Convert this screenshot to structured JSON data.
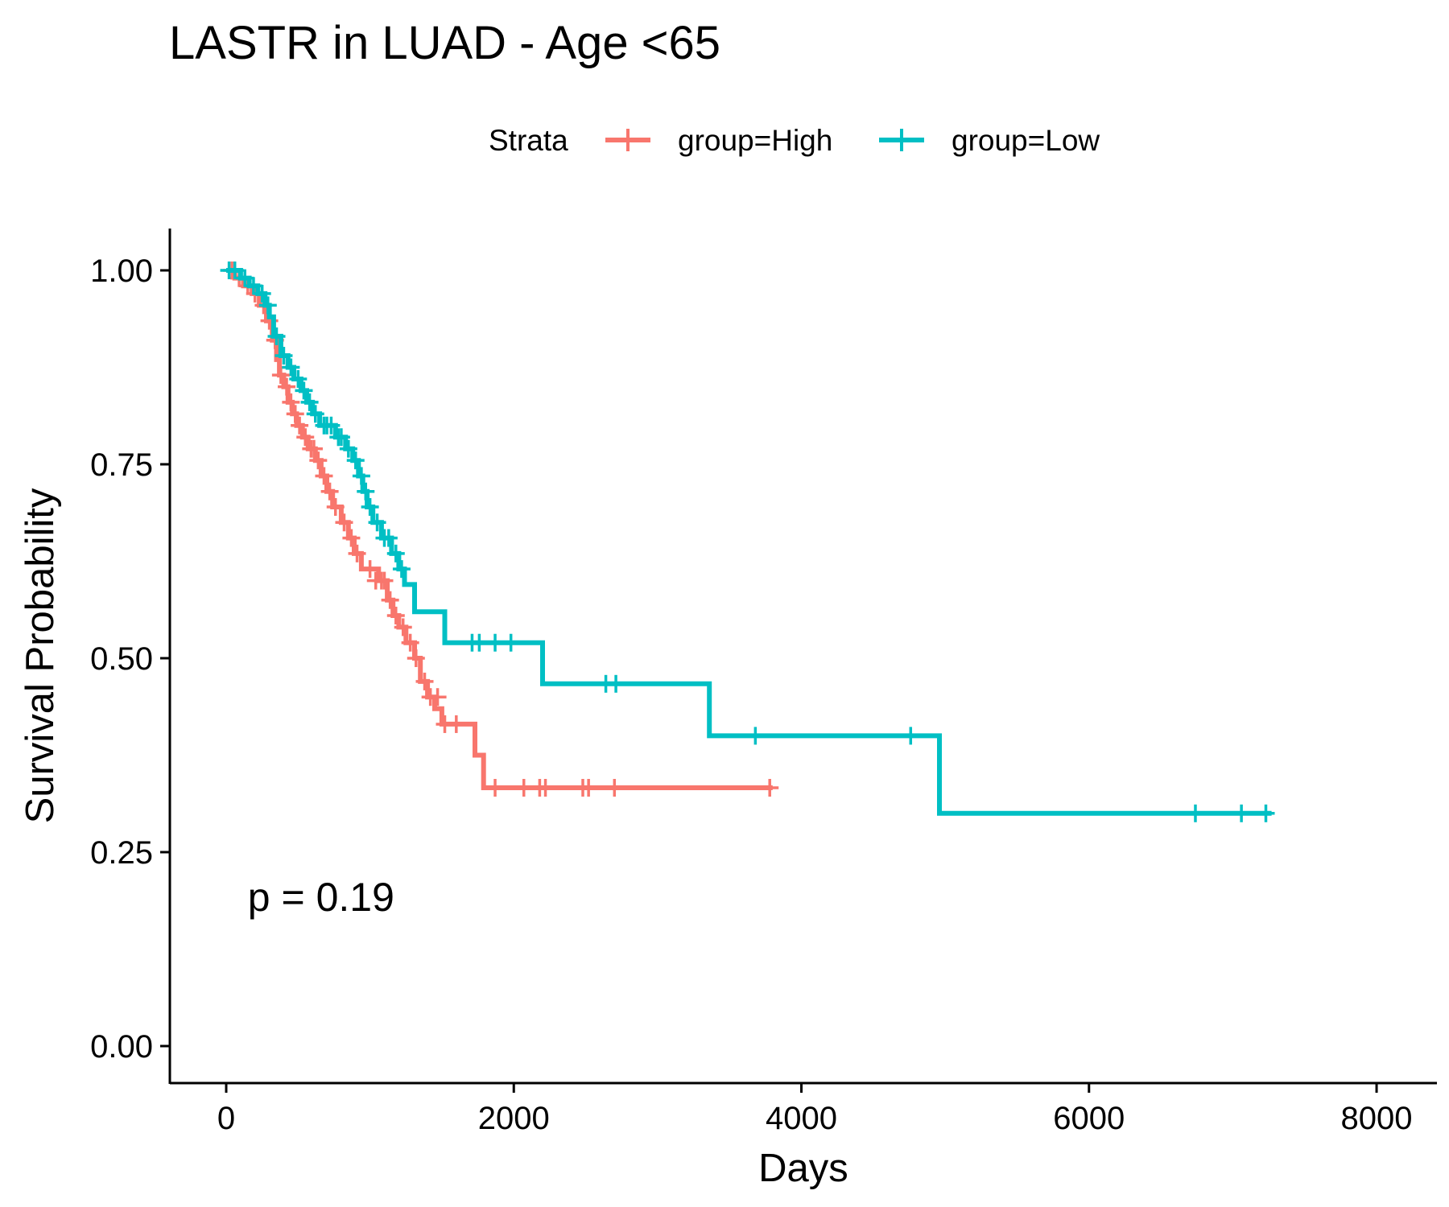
{
  "chart_data": {
    "type": "line",
    "subtype": "kaplan-meier",
    "title": "LASTR in LUAD - Age <65",
    "xlabel": "Days",
    "ylabel": "Survival Probability",
    "xlim": [
      -400,
      8400
    ],
    "ylim": [
      -0.05,
      1.05
    ],
    "xticks": [
      0,
      2000,
      4000,
      6000,
      8000
    ],
    "xtick_labels": [
      "0",
      "2000",
      "4000",
      "6000",
      "8000"
    ],
    "yticks": [
      0,
      0.25,
      0.5,
      0.75,
      1
    ],
    "ytick_labels": [
      "0.00",
      "0.25",
      "0.50",
      "0.75",
      "1.00"
    ],
    "grid": false,
    "legend": {
      "title": "Strata",
      "position": "top",
      "entries": [
        "group=High",
        "group=Low"
      ]
    },
    "annotation": {
      "text": "p = 0.19",
      "x": 150,
      "y": 0.195
    },
    "series": [
      {
        "name": "group=High",
        "color": "#F8766D",
        "steps": [
          [
            0,
            1.0
          ],
          [
            60,
            0.99
          ],
          [
            120,
            0.98
          ],
          [
            180,
            0.97
          ],
          [
            230,
            0.955
          ],
          [
            280,
            0.935
          ],
          [
            320,
            0.91
          ],
          [
            350,
            0.885
          ],
          [
            370,
            0.865
          ],
          [
            400,
            0.85
          ],
          [
            430,
            0.83
          ],
          [
            460,
            0.815
          ],
          [
            490,
            0.8
          ],
          [
            530,
            0.785
          ],
          [
            570,
            0.77
          ],
          [
            620,
            0.755
          ],
          [
            660,
            0.735
          ],
          [
            700,
            0.715
          ],
          [
            740,
            0.695
          ],
          [
            800,
            0.675
          ],
          [
            850,
            0.655
          ],
          [
            890,
            0.635
          ],
          [
            940,
            0.615
          ],
          [
            1060,
            0.6
          ],
          [
            1120,
            0.575
          ],
          [
            1160,
            0.555
          ],
          [
            1200,
            0.54
          ],
          [
            1250,
            0.52
          ],
          [
            1310,
            0.5
          ],
          [
            1350,
            0.47
          ],
          [
            1400,
            0.45
          ],
          [
            1450,
            0.435
          ],
          [
            1500,
            0.415
          ],
          [
            1730,
            0.375
          ],
          [
            1790,
            0.333
          ],
          [
            3800,
            0.333
          ]
        ],
        "censor": [
          [
            40,
            1.0
          ],
          [
            90,
            0.99
          ],
          [
            150,
            0.98
          ],
          [
            200,
            0.97
          ],
          [
            260,
            0.955
          ],
          [
            300,
            0.935
          ],
          [
            340,
            0.91
          ],
          [
            380,
            0.865
          ],
          [
            420,
            0.85
          ],
          [
            450,
            0.83
          ],
          [
            480,
            0.815
          ],
          [
            510,
            0.8
          ],
          [
            550,
            0.785
          ],
          [
            590,
            0.77
          ],
          [
            610,
            0.77
          ],
          [
            640,
            0.755
          ],
          [
            680,
            0.735
          ],
          [
            720,
            0.715
          ],
          [
            760,
            0.695
          ],
          [
            820,
            0.675
          ],
          [
            870,
            0.655
          ],
          [
            910,
            0.635
          ],
          [
            1000,
            0.615
          ],
          [
            1040,
            0.6
          ],
          [
            1080,
            0.6
          ],
          [
            1100,
            0.6
          ],
          [
            1140,
            0.575
          ],
          [
            1180,
            0.555
          ],
          [
            1230,
            0.54
          ],
          [
            1280,
            0.52
          ],
          [
            1320,
            0.5
          ],
          [
            1380,
            0.47
          ],
          [
            1420,
            0.45
          ],
          [
            1470,
            0.45
          ],
          [
            1520,
            0.415
          ],
          [
            1600,
            0.415
          ],
          [
            1870,
            0.333
          ],
          [
            2070,
            0.333
          ],
          [
            2180,
            0.333
          ],
          [
            2220,
            0.333
          ],
          [
            2480,
            0.333
          ],
          [
            2520,
            0.333
          ],
          [
            2700,
            0.333
          ],
          [
            3780,
            0.333
          ]
        ]
      },
      {
        "name": "group=Low",
        "color": "#00BFC4",
        "steps": [
          [
            0,
            1.0
          ],
          [
            100,
            0.99
          ],
          [
            160,
            0.98
          ],
          [
            220,
            0.97
          ],
          [
            270,
            0.955
          ],
          [
            300,
            0.94
          ],
          [
            330,
            0.915
          ],
          [
            380,
            0.89
          ],
          [
            430,
            0.875
          ],
          [
            470,
            0.86
          ],
          [
            520,
            0.845
          ],
          [
            560,
            0.83
          ],
          [
            600,
            0.815
          ],
          [
            650,
            0.8
          ],
          [
            760,
            0.785
          ],
          [
            830,
            0.77
          ],
          [
            880,
            0.755
          ],
          [
            920,
            0.735
          ],
          [
            950,
            0.715
          ],
          [
            980,
            0.695
          ],
          [
            1020,
            0.675
          ],
          [
            1080,
            0.655
          ],
          [
            1150,
            0.635
          ],
          [
            1200,
            0.615
          ],
          [
            1240,
            0.595
          ],
          [
            1310,
            0.56
          ],
          [
            1520,
            0.52
          ],
          [
            2200,
            0.467
          ],
          [
            3360,
            0.4
          ],
          [
            4960,
            0.3
          ],
          [
            7270,
            0.3
          ]
        ],
        "censor": [
          [
            20,
            1.0
          ],
          [
            60,
            1.0
          ],
          [
            130,
            0.99
          ],
          [
            190,
            0.98
          ],
          [
            250,
            0.97
          ],
          [
            290,
            0.955
          ],
          [
            350,
            0.915
          ],
          [
            400,
            0.89
          ],
          [
            450,
            0.875
          ],
          [
            500,
            0.86
          ],
          [
            540,
            0.845
          ],
          [
            580,
            0.83
          ],
          [
            620,
            0.815
          ],
          [
            680,
            0.8
          ],
          [
            700,
            0.8
          ],
          [
            730,
            0.8
          ],
          [
            780,
            0.785
          ],
          [
            800,
            0.785
          ],
          [
            850,
            0.77
          ],
          [
            900,
            0.755
          ],
          [
            940,
            0.735
          ],
          [
            970,
            0.715
          ],
          [
            1000,
            0.695
          ],
          [
            1050,
            0.675
          ],
          [
            1100,
            0.655
          ],
          [
            1130,
            0.655
          ],
          [
            1180,
            0.635
          ],
          [
            1220,
            0.615
          ],
          [
            1710,
            0.52
          ],
          [
            1760,
            0.52
          ],
          [
            1870,
            0.52
          ],
          [
            1980,
            0.52
          ],
          [
            2640,
            0.467
          ],
          [
            2710,
            0.467
          ],
          [
            3680,
            0.4
          ],
          [
            4760,
            0.4
          ],
          [
            6740,
            0.3
          ],
          [
            7060,
            0.3
          ],
          [
            7230,
            0.3
          ]
        ]
      }
    ]
  }
}
